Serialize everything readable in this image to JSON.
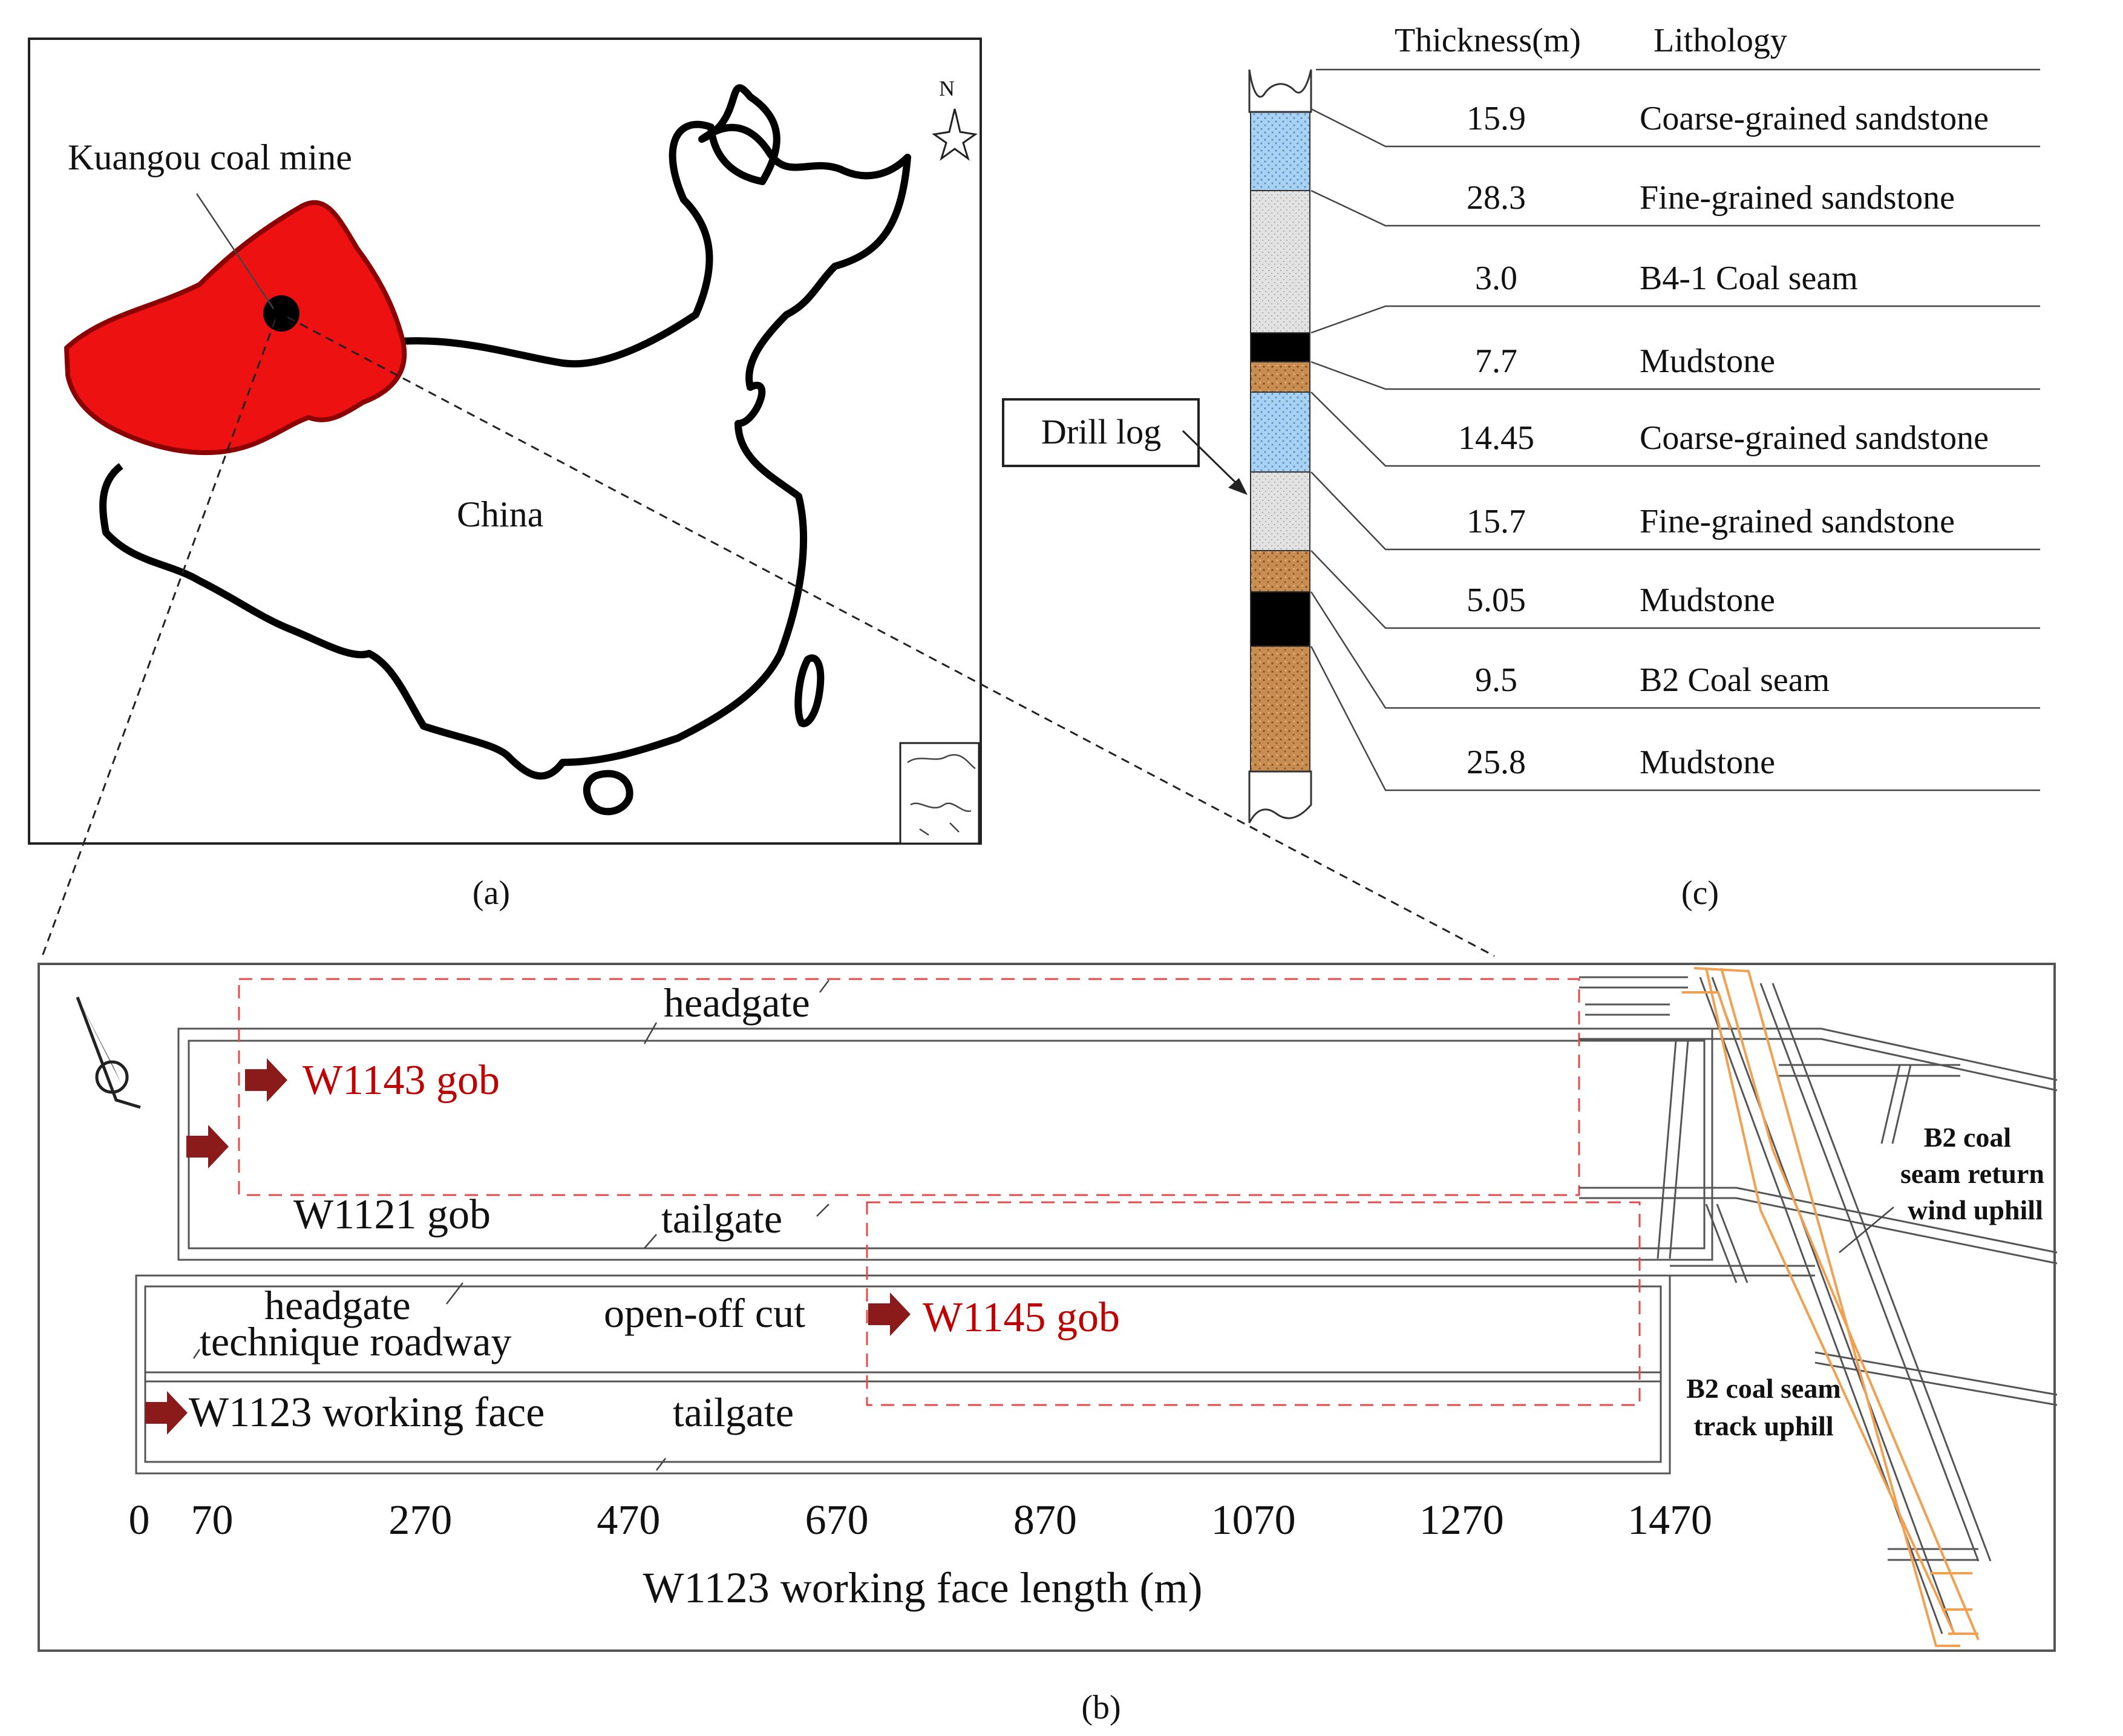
{
  "panel_a": {
    "caption": "(a)",
    "mine_label": "Kuangou coal mine",
    "country_label": "China",
    "north_label": "N"
  },
  "panel_b": {
    "caption": "(b)",
    "labels": {
      "headgate_top": "headgate",
      "w1143_gob": "W1143 gob",
      "w1121_gob": "W1121 gob",
      "tailgate_mid": "tailgate",
      "headgate_low": "headgate",
      "technique_roadway": "technique roadway",
      "open_off_cut": "open-off cut",
      "w1145_gob": "W1145 gob",
      "w1123_face": "W1123 working face",
      "tailgate_low": "tailgate",
      "return_uphill_1": "B2 coal",
      "return_uphill_2": "seam return",
      "return_uphill_3": "wind uphill",
      "track_uphill_1": "B2 coal seam",
      "track_uphill_2": "track uphill"
    },
    "axis": {
      "title": "W1123 working face length (m)",
      "ticks": [
        "0",
        "70",
        "270",
        "470",
        "670",
        "870",
        "1070",
        "1270",
        "1470"
      ]
    },
    "colors": {
      "gob_text": "#c00000",
      "arrow": "#8b1a1a",
      "gob_outline": "#e24b4b",
      "roadway_overlay": "#f0a050"
    }
  },
  "panel_c": {
    "caption": "(c)",
    "header_thickness": "Thickness(m)",
    "header_lithology": "Lithology",
    "drill_log_label": "Drill log",
    "layers": [
      {
        "thickness": "15.9",
        "lithology": "Coarse-grained sandstone",
        "pattern": "coarse-sandstone"
      },
      {
        "thickness": "28.3",
        "lithology": "Fine-grained sandstone",
        "pattern": "fine-sandstone"
      },
      {
        "thickness": "3.0",
        "lithology": "B4-1 Coal seam",
        "pattern": "coal"
      },
      {
        "thickness": "7.7",
        "lithology": "Mudstone",
        "pattern": "mudstone"
      },
      {
        "thickness": "14.45",
        "lithology": "Coarse-grained sandstone",
        "pattern": "coarse-sandstone"
      },
      {
        "thickness": "15.7",
        "lithology": "Fine-grained sandstone",
        "pattern": "fine-sandstone"
      },
      {
        "thickness": "5.05",
        "lithology": "Mudstone",
        "pattern": "mudstone"
      },
      {
        "thickness": "9.5",
        "lithology": "B2 Coal seam",
        "pattern": "coal"
      },
      {
        "thickness": "25.8",
        "lithology": "Mudstone",
        "pattern": "mudstone"
      }
    ],
    "colors": {
      "coarse-sandstone": "#9cc8f0",
      "fine-sandstone": "#dedede",
      "coal": "#000000",
      "mudstone": "#c88a4e"
    }
  },
  "colors": {
    "xinjiang_fill": "#ee1111",
    "outline": "#000000"
  }
}
